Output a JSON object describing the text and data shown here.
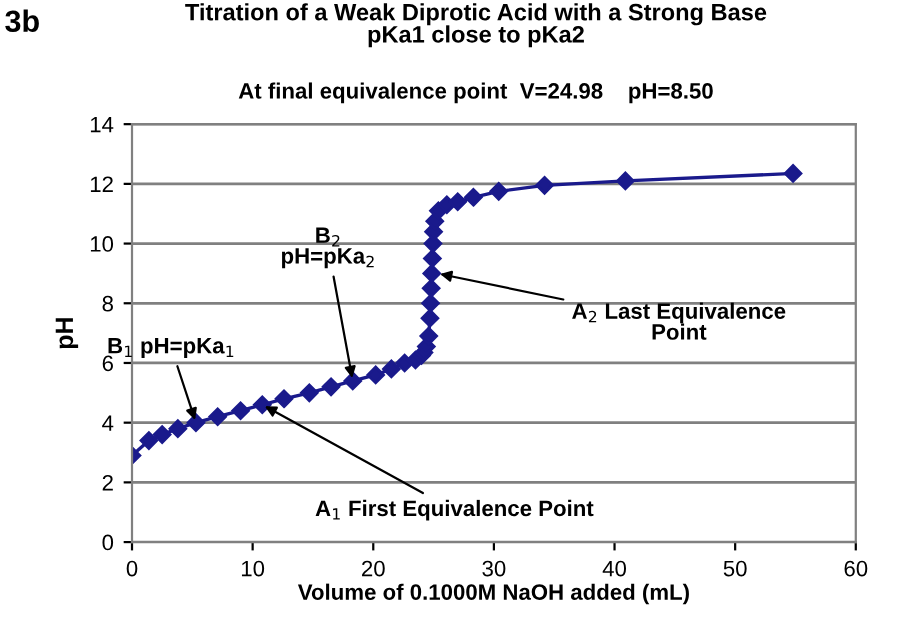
{
  "chart_data": {
    "type": "line",
    "title": "Titration of a Weak Diprotic Acid with a Strong Base\npKa1 close to pKa2",
    "subtitle": "At final equivalence point  V=24.98    pH=8.50",
    "xlabel": "Volume of 0.1000M NaOH added (mL)",
    "ylabel": "pH",
    "x": [
      0,
      1.4,
      2.5,
      3.8,
      5.3,
      7.1,
      9.0,
      10.8,
      12.6,
      14.7,
      16.5,
      18.3,
      20.2,
      21.5,
      22.6,
      23.5,
      24.0,
      24.2,
      24.4,
      24.6,
      24.7,
      24.75,
      24.8,
      24.85,
      24.9,
      24.95,
      25.0,
      25.1,
      25.4,
      26.1,
      27.0,
      28.3,
      30.4,
      34.2,
      40.9,
      54.8
    ],
    "series": [
      {
        "color": "#1a1a8c",
        "values": [
          2.9,
          3.4,
          3.6,
          3.8,
          4.0,
          4.2,
          4.4,
          4.6,
          4.8,
          5.0,
          5.2,
          5.4,
          5.6,
          5.8,
          6.0,
          6.1,
          6.25,
          6.35,
          6.55,
          6.9,
          7.5,
          8.0,
          8.5,
          9.0,
          9.5,
          10.0,
          10.4,
          10.75,
          11.1,
          11.3,
          11.4,
          11.55,
          11.75,
          11.95,
          12.1,
          12.35
        ]
      }
    ],
    "xlim": [
      0,
      60
    ],
    "xticks": [
      0,
      10,
      20,
      30,
      40,
      50,
      60
    ],
    "ylim": [
      0,
      14
    ],
    "yticks": [
      0,
      2,
      4,
      6,
      8,
      10,
      12,
      14
    ],
    "grid": "y",
    "marker": "diamond",
    "line_style": "solid",
    "annotations": [
      "3b",
      {
        "text": "B$_{1}$ pH=pKa$_{1}$",
        "x": 5.3,
        "y": 4.0
      },
      {
        "text": "B$_{2}$\npH=pKa$_{2}$",
        "x": 18.3,
        "y": 5.4
      },
      {
        "text": "A$_{2}$ Last Equivalence\nPoint",
        "x": 25.3,
        "y": 9.0
      },
      {
        "text": "A$_{1}$ First Equivalence Point",
        "x": 10.8,
        "y": 4.6
      }
    ]
  }
}
